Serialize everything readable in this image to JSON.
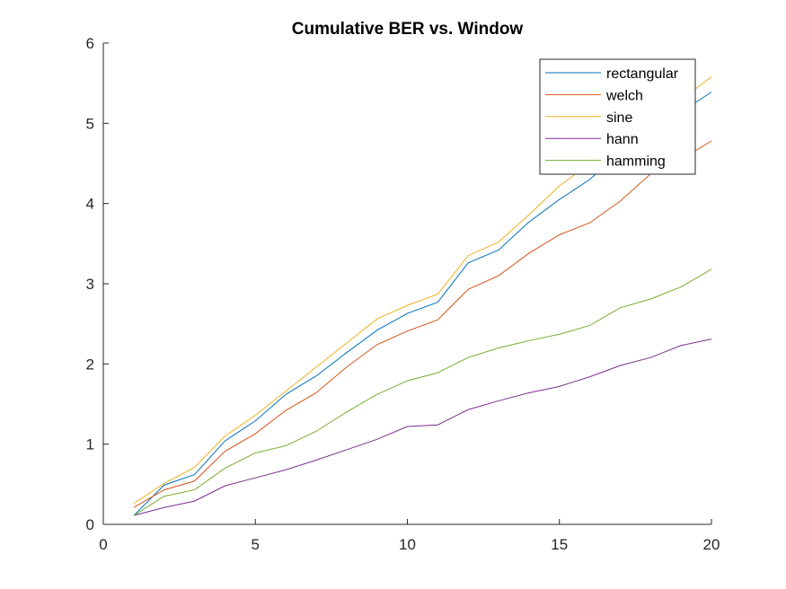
{
  "chart_data": {
    "type": "line",
    "title": "Cumulative BER vs. Window",
    "xlabel": "",
    "ylabel": "",
    "xlim": [
      0,
      20
    ],
    "ylim": [
      0,
      6
    ],
    "xticks": [
      0,
      5,
      10,
      15,
      20
    ],
    "yticks": [
      0,
      1,
      2,
      3,
      4,
      5,
      6
    ],
    "grid": false,
    "legend_position": "top-right",
    "x": [
      1,
      2,
      3,
      4,
      5,
      6,
      7,
      8,
      9,
      10,
      11,
      12,
      13,
      14,
      15,
      16,
      17,
      18,
      19,
      20
    ],
    "series": [
      {
        "name": "rectangular",
        "color": "#0072BD",
        "values": [
          0.11,
          0.49,
          0.62,
          1.04,
          1.29,
          1.62,
          1.85,
          2.14,
          2.42,
          2.63,
          2.77,
          3.26,
          3.42,
          3.77,
          4.05,
          4.3,
          4.65,
          4.9,
          5.14,
          5.39
        ]
      },
      {
        "name": "welch",
        "color": "#D95319",
        "values": [
          0.21,
          0.43,
          0.54,
          0.91,
          1.13,
          1.42,
          1.64,
          1.96,
          2.24,
          2.41,
          2.55,
          2.93,
          3.1,
          3.38,
          3.61,
          3.76,
          4.03,
          4.37,
          4.55,
          4.78
        ]
      },
      {
        "name": "sine",
        "color": "#EDB120",
        "values": [
          0.26,
          0.51,
          0.71,
          1.1,
          1.36,
          1.66,
          1.96,
          2.26,
          2.56,
          2.73,
          2.87,
          3.35,
          3.52,
          3.86,
          4.22,
          4.5,
          4.75,
          5.03,
          5.29,
          5.58
        ]
      },
      {
        "name": "hann",
        "color": "#7E2F8E",
        "values": [
          0.11,
          0.21,
          0.29,
          0.48,
          0.58,
          0.68,
          0.8,
          0.93,
          1.06,
          1.22,
          1.24,
          1.43,
          1.54,
          1.64,
          1.72,
          1.84,
          1.98,
          2.08,
          2.23,
          2.31
        ]
      },
      {
        "name": "hamming",
        "color": "#77AC30",
        "values": [
          0.11,
          0.35,
          0.43,
          0.7,
          0.89,
          0.98,
          1.16,
          1.4,
          1.62,
          1.79,
          1.89,
          2.08,
          2.2,
          2.29,
          2.37,
          2.48,
          2.7,
          2.81,
          2.96,
          3.18
        ]
      }
    ]
  }
}
